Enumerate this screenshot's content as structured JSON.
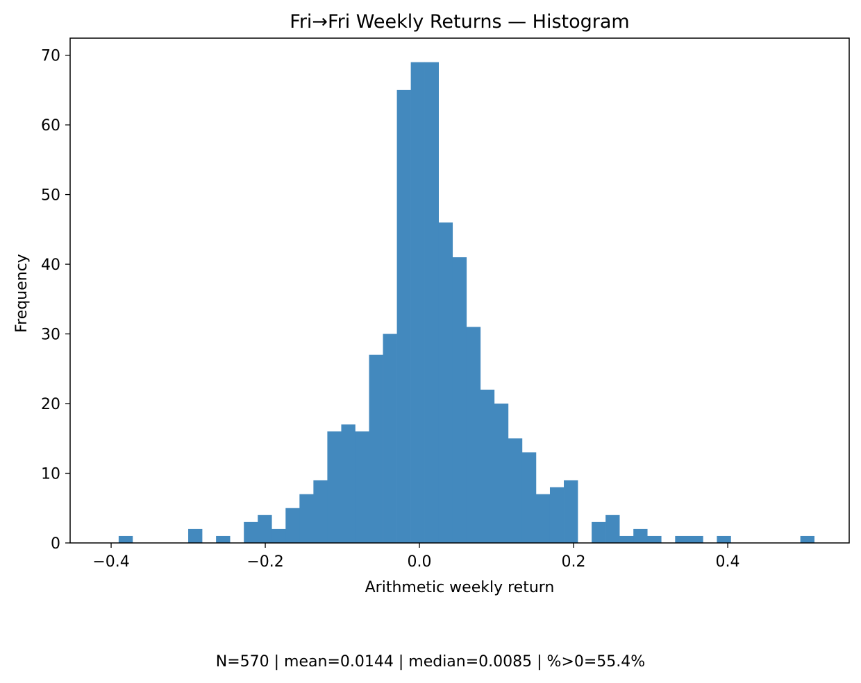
{
  "chart_data": {
    "type": "bar",
    "title": "Fri→Fri Weekly Returns — Histogram",
    "xlabel": "Arithmetic weekly return",
    "ylabel": "Frequency",
    "xlim": [
      -0.4532,
      0.5576
    ],
    "ylim": [
      0,
      72.45
    ],
    "xticks": [
      -0.4,
      -0.2,
      0.0,
      0.2,
      0.4
    ],
    "xtick_labels": [
      "−0.4",
      "−0.2",
      "0.0",
      "0.2",
      "0.4"
    ],
    "yticks": [
      0,
      10,
      20,
      30,
      40,
      50,
      60,
      70
    ],
    "ytick_labels": [
      "0",
      "10",
      "20",
      "30",
      "40",
      "50",
      "60",
      "70"
    ],
    "bin_start": -0.4083,
    "bin_width": 0.01805,
    "counts": [
      0,
      1,
      0,
      0,
      0,
      0,
      2,
      0,
      1,
      0,
      3,
      4,
      2,
      5,
      7,
      9,
      16,
      17,
      16,
      27,
      30,
      65,
      69,
      69,
      46,
      41,
      31,
      22,
      20,
      15,
      13,
      7,
      8,
      9,
      0,
      3,
      4,
      1,
      2,
      1,
      0,
      1,
      1,
      0,
      1,
      0,
      0,
      0,
      0,
      0,
      1
    ],
    "bar_color": "#4389be",
    "grid": false,
    "legend": "none",
    "footer": "N=570 | mean=0.0144 | median=0.0085 | %>0=55.4%"
  }
}
